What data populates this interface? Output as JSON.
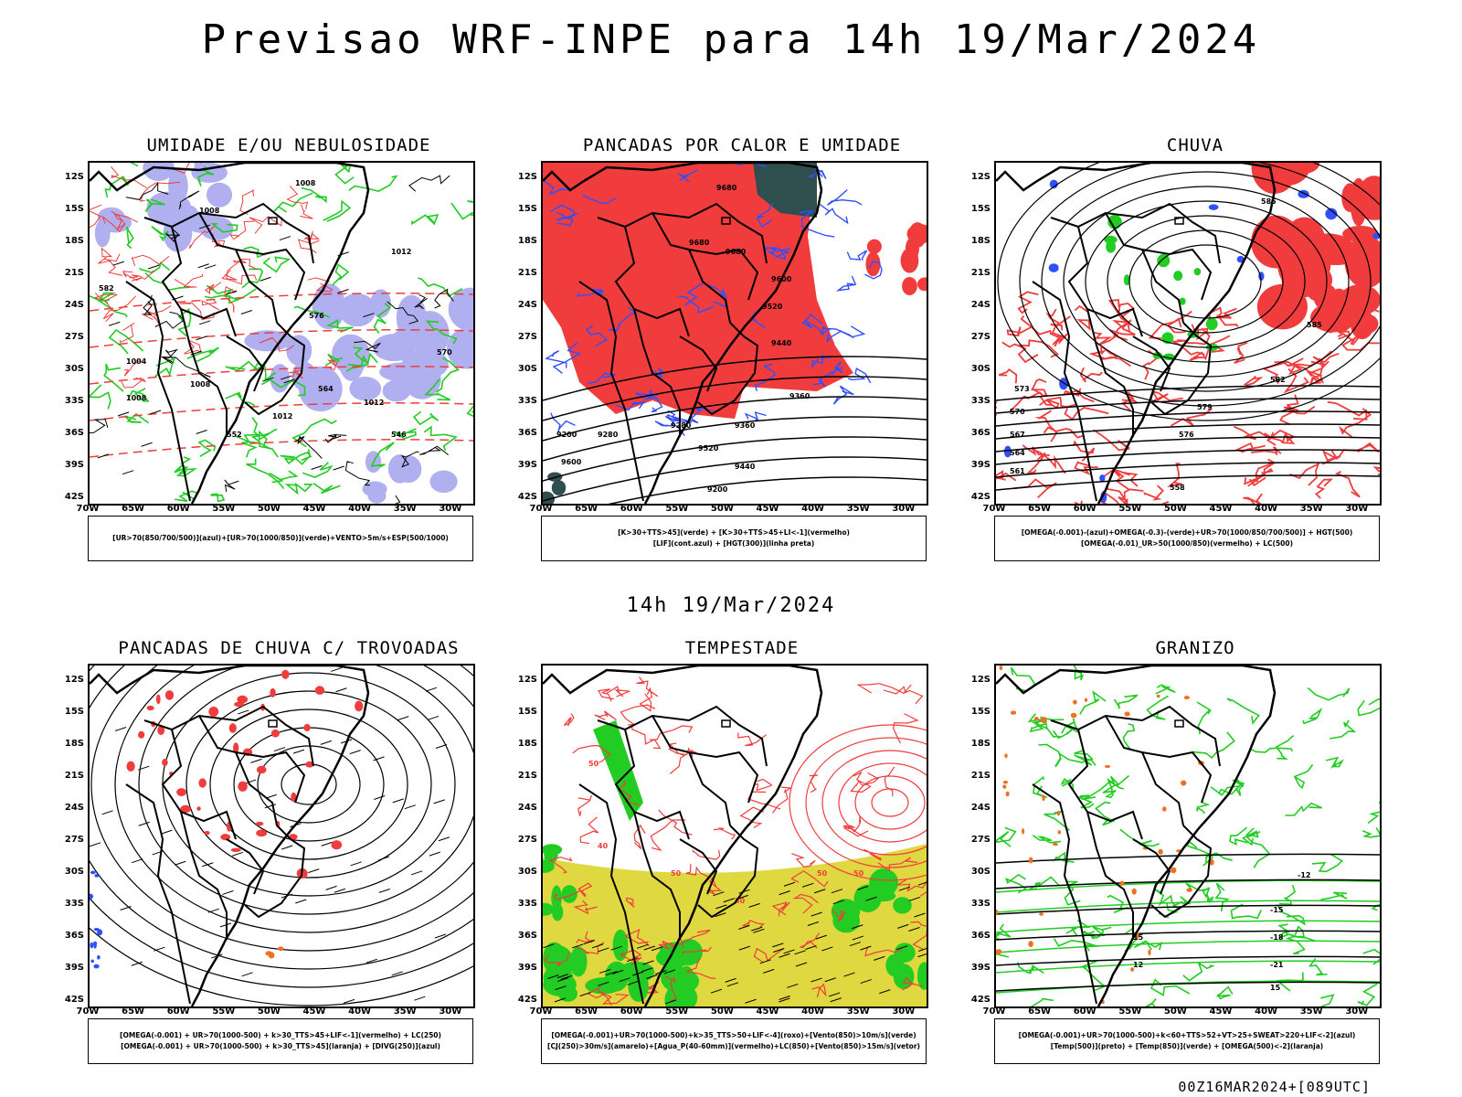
{
  "main_title": "Previsao WRF-INPE  para 14h 19/Mar/2024",
  "mid_title": "14h 19/Mar/2024",
  "footer": "00Z16MAR2024+[089UTC]",
  "axes": {
    "lat_labels": [
      "12S",
      "15S",
      "18S",
      "21S",
      "24S",
      "27S",
      "30S",
      "33S",
      "36S",
      "39S",
      "42S"
    ],
    "lon_labels": [
      "70W",
      "65W",
      "60W",
      "55W",
      "50W",
      "45W",
      "40W",
      "35W",
      "30W"
    ]
  },
  "colors": {
    "red": "#f03c3c",
    "green": "#22cc22",
    "blue": "#3050ff",
    "lavender": "#b0b0f0",
    "darkteal": "#2f4f4f",
    "yellow": "#e0d840",
    "orange": "#f07020",
    "purple": "#a020c0"
  },
  "panels": [
    {
      "id": "umidade",
      "title": "UMIDADE E/OU NEBULOSIDADE",
      "legend": [
        "[UR>70(850/700/500)](azul)+[UR>70(1000/850)](verde)+VENTO>5m/s+ESP(500/1000)"
      ],
      "contour_labels": [
        "1008",
        "1008",
        "1012",
        "1004",
        "1008",
        "1012",
        "1008",
        "576",
        "564",
        "552",
        "546",
        "582",
        "570",
        "1012"
      ]
    },
    {
      "id": "pancadas-calor",
      "title": "PANCADAS POR CALOR E UMIDADE",
      "legend": [
        "[K>30+TTS>45](verde) + [K>30+TTS>45+LI<-1](vermelho)",
        "[LIF](cont.azul) + [HGT(300)](linha preta)"
      ],
      "contour_labels": [
        "9680",
        "9680",
        "9680",
        "9600",
        "9520",
        "9440",
        "9360",
        "9280",
        "9200",
        "9600",
        "9520",
        "9440",
        "9360",
        "9280",
        "9200"
      ]
    },
    {
      "id": "chuva",
      "title": "CHUVA",
      "legend": [
        "[OMEGA(-0.001)-(azul)+OMEGA(-0.3)-(verde)+UR>70(1000/850/700/500)] + HGT(500)",
        "[OMEGA(-0.01)_UR>50(1000/850)(vermelho) + LC(500)"
      ],
      "contour_labels": [
        "585",
        "585",
        "582",
        "579",
        "576",
        "573",
        "570",
        "567",
        "564",
        "561",
        "558"
      ]
    },
    {
      "id": "trovoadas",
      "title": "PANCADAS DE CHUVA C/ TROVOADAS",
      "legend": [
        "[OMEGA(-0.001) + UR>70(1000-500) + k>30_TTS>45+LIF<-1](vermelho) + LC(250)",
        "[OMEGA(-0.001) + UR>70(1000-500) + k>30_TTS>45](laranja) + [DIVG(250)](azul)"
      ],
      "contour_labels": []
    },
    {
      "id": "tempestade",
      "title": "TEMPESTADE",
      "legend": [
        "[OMEGA(-0.001)+UR>70(1000-500)+k>35_TTS>50+LIF<-4](roxo)+[Vento(850)>10m/s](verde)",
        "[CJ(250)>30m/s](amarelo)+[Agua_P(40-60mm)](vermelho)+LC(850)+[Vento(850)>15m/s](vetor)"
      ],
      "contour_labels": [
        "50",
        "50",
        "50",
        "50",
        "50",
        "40"
      ]
    },
    {
      "id": "granizo",
      "title": "GRANIZO",
      "legend": [
        "[OMEGA(-0.001)+UR>70(1000-500)+k<60+TTS>52+VT>25+SWEAT>220+LIF<-2](azul)",
        "[Temp(500)](preto) + [Temp(850)](verde) + [OMEGA(500)<-2](laranja)"
      ],
      "contour_labels": [
        "-12",
        "-15",
        "-18",
        "-21",
        "15",
        "15",
        "12"
      ]
    }
  ]
}
